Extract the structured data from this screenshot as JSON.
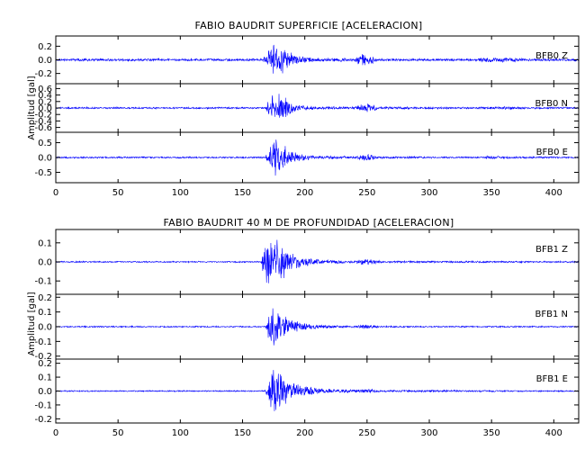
{
  "chart_data": [
    {
      "type": "line",
      "title": "FABIO BAUDRIT SUPERFICIE [ACELERACION]",
      "ylabel": "Amplitud [gal]",
      "xlim": [
        0,
        420
      ],
      "xticks": [
        "0",
        "50",
        "100",
        "150",
        "200",
        "250",
        "300",
        "350",
        "400"
      ],
      "panels": [
        {
          "name": "BFB0 Z",
          "ylim": [
            -0.35,
            0.35
          ],
          "yticks": [
            "0.2",
            "0.0",
            "-0.2"
          ],
          "yticks_values": [
            0.2,
            0.0,
            -0.2
          ],
          "envelope": [
            [
              0,
              0.02
            ],
            [
              166,
              0.02
            ],
            [
              170,
              0.15
            ],
            [
              176,
              0.32
            ],
            [
              180,
              0.24
            ],
            [
              186,
              0.14
            ],
            [
              195,
              0.06
            ],
            [
              210,
              0.03
            ],
            [
              240,
              0.03
            ],
            [
              244,
              0.09
            ],
            [
              248,
              0.11
            ],
            [
              254,
              0.07
            ],
            [
              258,
              0.02
            ],
            [
              338,
              0.02
            ],
            [
              345,
              0.04
            ],
            [
              360,
              0.04
            ],
            [
              372,
              0.03
            ],
            [
              380,
              0.02
            ],
            [
              420,
              0.02
            ]
          ]
        },
        {
          "name": "BFB0 N",
          "ylim": [
            -0.75,
            0.75
          ],
          "yticks": [
            "0.6",
            "0.4",
            "0.2",
            "0.0",
            "-0.2",
            "-0.4",
            "-0.6"
          ],
          "yticks_values": [
            0.6,
            0.4,
            0.2,
            0.0,
            -0.2,
            -0.4,
            -0.6
          ],
          "envelope": [
            [
              0,
              0.03
            ],
            [
              168,
              0.03
            ],
            [
              172,
              0.35
            ],
            [
              177,
              0.6
            ],
            [
              181,
              0.45
            ],
            [
              188,
              0.25
            ],
            [
              196,
              0.1
            ],
            [
              210,
              0.05
            ],
            [
              240,
              0.05
            ],
            [
              246,
              0.14
            ],
            [
              250,
              0.16
            ],
            [
              256,
              0.1
            ],
            [
              260,
              0.04
            ],
            [
              338,
              0.03
            ],
            [
              348,
              0.05
            ],
            [
              362,
              0.05
            ],
            [
              372,
              0.04
            ],
            [
              380,
              0.03
            ],
            [
              420,
              0.03
            ]
          ]
        },
        {
          "name": "BFB0 E",
          "ylim": [
            -0.85,
            0.85
          ],
          "yticks": [
            "0.5",
            "0.0",
            "-0.5"
          ],
          "yticks_values": [
            0.5,
            0.0,
            -0.5
          ],
          "envelope": [
            [
              0,
              0.03
            ],
            [
              168,
              0.03
            ],
            [
              172,
              0.4
            ],
            [
              177,
              0.8
            ],
            [
              181,
              0.5
            ],
            [
              188,
              0.28
            ],
            [
              196,
              0.12
            ],
            [
              210,
              0.06
            ],
            [
              240,
              0.05
            ],
            [
              247,
              0.12
            ],
            [
              250,
              0.14
            ],
            [
              256,
              0.08
            ],
            [
              260,
              0.04
            ],
            [
              340,
              0.03
            ],
            [
              348,
              0.06
            ],
            [
              360,
              0.05
            ],
            [
              372,
              0.04
            ],
            [
              420,
              0.03
            ]
          ]
        }
      ]
    },
    {
      "type": "line",
      "title": "FABIO BAUDRIT 40 M DE PROFUNDIDAD [ACELERACION]",
      "ylabel": "Amplitud [gal]",
      "xlim": [
        0,
        420
      ],
      "xticks": [
        "0",
        "50",
        "100",
        "150",
        "200",
        "250",
        "300",
        "350",
        "400"
      ],
      "panels": [
        {
          "name": "BFB1 Z",
          "ylim": [
            -0.17,
            0.17
          ],
          "yticks": [
            "0.1",
            "0.0",
            "-0.1"
          ],
          "yticks_values": [
            0.1,
            0.0,
            -0.1
          ],
          "envelope": [
            [
              0,
              0.004
            ],
            [
              165,
              0.004
            ],
            [
              167,
              0.09
            ],
            [
              171,
              0.14
            ],
            [
              176,
              0.16
            ],
            [
              181,
              0.11
            ],
            [
              188,
              0.06
            ],
            [
              198,
              0.025
            ],
            [
              215,
              0.012
            ],
            [
              240,
              0.008
            ],
            [
              246,
              0.022
            ],
            [
              250,
              0.025
            ],
            [
              256,
              0.012
            ],
            [
              262,
              0.006
            ],
            [
              420,
              0.004
            ]
          ]
        },
        {
          "name": "BFB1 N",
          "ylim": [
            -0.22,
            0.22
          ],
          "yticks": [
            "0.2",
            "0.1",
            "0.0",
            "-0.1",
            "-0.2"
          ],
          "yticks_values": [
            0.2,
            0.1,
            0.0,
            -0.1,
            -0.2
          ],
          "envelope": [
            [
              0,
              0.005
            ],
            [
              168,
              0.005
            ],
            [
              170,
              0.08
            ],
            [
              175,
              0.16
            ],
            [
              179,
              0.12
            ],
            [
              186,
              0.07
            ],
            [
              196,
              0.03
            ],
            [
              215,
              0.012
            ],
            [
              240,
              0.008
            ],
            [
              247,
              0.018
            ],
            [
              252,
              0.015
            ],
            [
              260,
              0.006
            ],
            [
              420,
              0.005
            ]
          ]
        },
        {
          "name": "BFB1 E",
          "ylim": [
            -0.23,
            0.23
          ],
          "yticks": [
            "0.2",
            "0.1",
            "0.0",
            "-0.1",
            "-0.2"
          ],
          "yticks_values": [
            0.2,
            0.1,
            0.0,
            -0.1,
            -0.2
          ],
          "envelope": [
            [
              0,
              0.005
            ],
            [
              168,
              0.005
            ],
            [
              171,
              0.1
            ],
            [
              176,
              0.2
            ],
            [
              180,
              0.15
            ],
            [
              187,
              0.09
            ],
            [
              196,
              0.05
            ],
            [
              212,
              0.02
            ],
            [
              240,
              0.01
            ],
            [
              247,
              0.02
            ],
            [
              252,
              0.018
            ],
            [
              260,
              0.008
            ],
            [
              420,
              0.005
            ]
          ]
        }
      ]
    }
  ]
}
